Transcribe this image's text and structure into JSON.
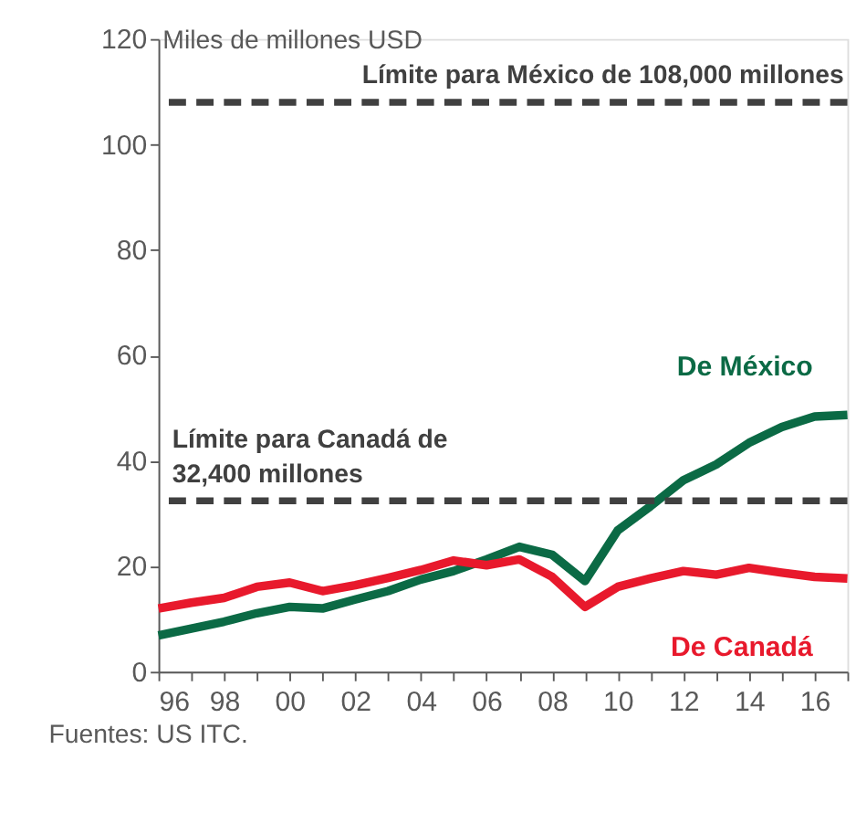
{
  "chart_data": {
    "type": "line",
    "ylabel": "Miles de millones USD",
    "x": [
      1996,
      1997,
      1998,
      1999,
      2000,
      2001,
      2002,
      2003,
      2004,
      2005,
      2006,
      2007,
      2008,
      2009,
      2010,
      2011,
      2012,
      2013,
      2014,
      2015,
      2016,
      2017
    ],
    "series": [
      {
        "name": "De México",
        "color": "#0b6a45",
        "values": [
          6.9,
          8.2,
          9.5,
          11.1,
          12.3,
          12.0,
          13.7,
          15.3,
          17.5,
          19.1,
          21.3,
          23.7,
          22.2,
          17.2,
          26.8,
          31.4,
          36.3,
          39.3,
          43.4,
          46.4,
          48.4,
          48.7
        ]
      },
      {
        "name": "De Canadá",
        "color": "#e8192c",
        "values": [
          12.0,
          13.1,
          14.0,
          16.1,
          16.9,
          15.3,
          16.4,
          17.8,
          19.3,
          21.1,
          20.2,
          21.3,
          18.0,
          12.3,
          16.1,
          17.7,
          19.1,
          18.4,
          19.7,
          18.8,
          18.0,
          17.7
        ]
      }
    ],
    "xlim": [
      1996,
      2017
    ],
    "xticks": [
      {
        "value": 1996,
        "label": "96"
      },
      {
        "value": 1997,
        "label": null
      },
      {
        "value": 1998,
        "label": "98"
      },
      {
        "value": 1999,
        "label": null
      },
      {
        "value": 2000,
        "label": "00"
      },
      {
        "value": 2001,
        "label": null
      },
      {
        "value": 2002,
        "label": "02"
      },
      {
        "value": 2003,
        "label": null
      },
      {
        "value": 2004,
        "label": "04"
      },
      {
        "value": 2005,
        "label": null
      },
      {
        "value": 2006,
        "label": "06"
      },
      {
        "value": 2007,
        "label": null
      },
      {
        "value": 2008,
        "label": "08"
      },
      {
        "value": 2009,
        "label": null
      },
      {
        "value": 2010,
        "label": "10"
      },
      {
        "value": 2011,
        "label": null
      },
      {
        "value": 2012,
        "label": "12"
      },
      {
        "value": 2013,
        "label": null
      },
      {
        "value": 2014,
        "label": "14"
      },
      {
        "value": 2015,
        "label": null
      },
      {
        "value": 2016,
        "label": "16"
      },
      {
        "value": 2017,
        "label": null
      }
    ],
    "ylim": [
      0,
      120
    ],
    "yticks": [
      0,
      20,
      40,
      60,
      80,
      100,
      120
    ],
    "ref_lines": [
      {
        "axis": "y",
        "value": 108,
        "label": "Límite para México de 108,000 millones",
        "color": "#404040",
        "line_style": "dashed"
      },
      {
        "axis": "y",
        "value": 32.4,
        "label": "Límite para Canadá de\n32,400 millones",
        "color": "#404040",
        "line_style": "dashed"
      }
    ],
    "marker": "none",
    "line_style": "solid",
    "annotations": [
      "Fuentes: US ITC."
    ]
  }
}
